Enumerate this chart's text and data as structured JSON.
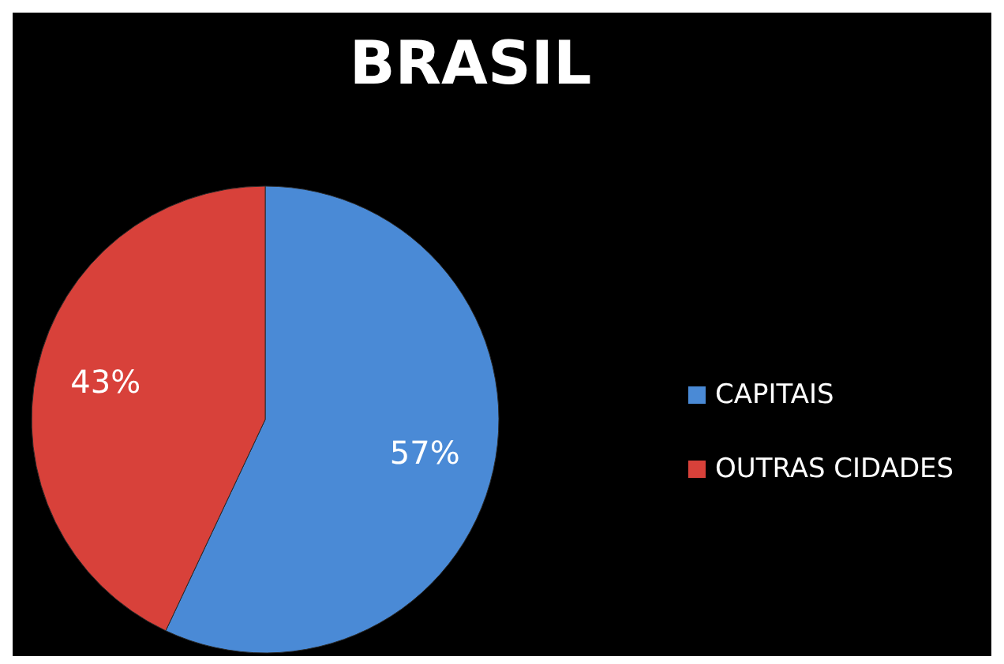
{
  "chart_data": {
    "type": "pie",
    "title": "BRASIL",
    "categories": [
      "CAPITAIS",
      "OUTRAS CIDADES"
    ],
    "values": [
      57,
      43
    ],
    "colors": [
      "#4a8ad6",
      "#d8413a"
    ],
    "value_labels": [
      "57%",
      "43%"
    ],
    "legend": "right"
  }
}
